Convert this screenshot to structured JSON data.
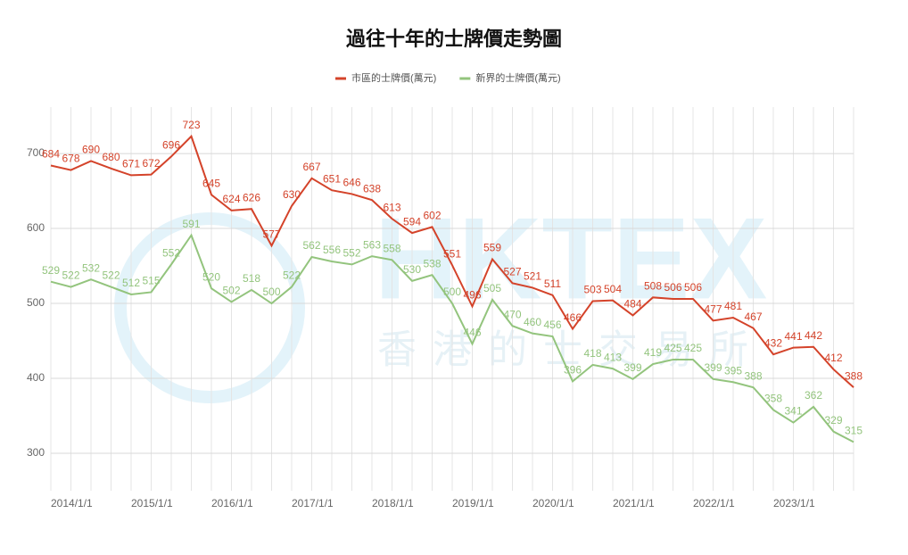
{
  "chart_data": {
    "type": "line",
    "title": "過往十年的士牌價走勢圖",
    "watermark": "HKTEX",
    "watermark_sub": "香港的士交易所",
    "categories": [
      "2014/1/1",
      null,
      null,
      null,
      "2015/1/1",
      null,
      null,
      null,
      "2016/1/1",
      null,
      null,
      null,
      "2017/1/1",
      null,
      null,
      null,
      "2018/1/1",
      null,
      null,
      null,
      "2019/1/1",
      null,
      null,
      null,
      "2020/1/1",
      null,
      null,
      null,
      "2021/1/1",
      null,
      null,
      null,
      "2022/1/1",
      null,
      null,
      null,
      "2023/1/1",
      null,
      null,
      null,
      null
    ],
    "series": [
      {
        "name": "市區的士牌價(萬元)",
        "color": "#d4432a",
        "values": [
          684,
          678,
          690,
          680,
          671,
          672,
          696,
          723,
          645,
          624,
          626,
          577,
          630,
          667,
          651,
          646,
          638,
          613,
          594,
          602,
          551,
          496,
          559,
          527,
          521,
          511,
          466,
          503,
          504,
          484,
          508,
          506,
          506,
          477,
          481,
          467,
          432,
          441,
          442,
          412,
          388
        ]
      },
      {
        "name": "新界的士牌價(萬元)",
        "color": "#93c47d",
        "values": [
          529,
          522,
          532,
          522,
          512,
          515,
          552,
          591,
          520,
          502,
          518,
          500,
          522,
          562,
          556,
          552,
          563,
          558,
          530,
          538,
          500,
          446,
          505,
          470,
          460,
          456,
          396,
          418,
          413,
          399,
          419,
          425,
          425,
          399,
          395,
          388,
          358,
          341,
          362,
          329,
          315
        ]
      }
    ],
    "ylim": [
      250,
      762
    ],
    "yticks": [
      300,
      400,
      500,
      600,
      700
    ],
    "grid": true,
    "legend": "top"
  }
}
